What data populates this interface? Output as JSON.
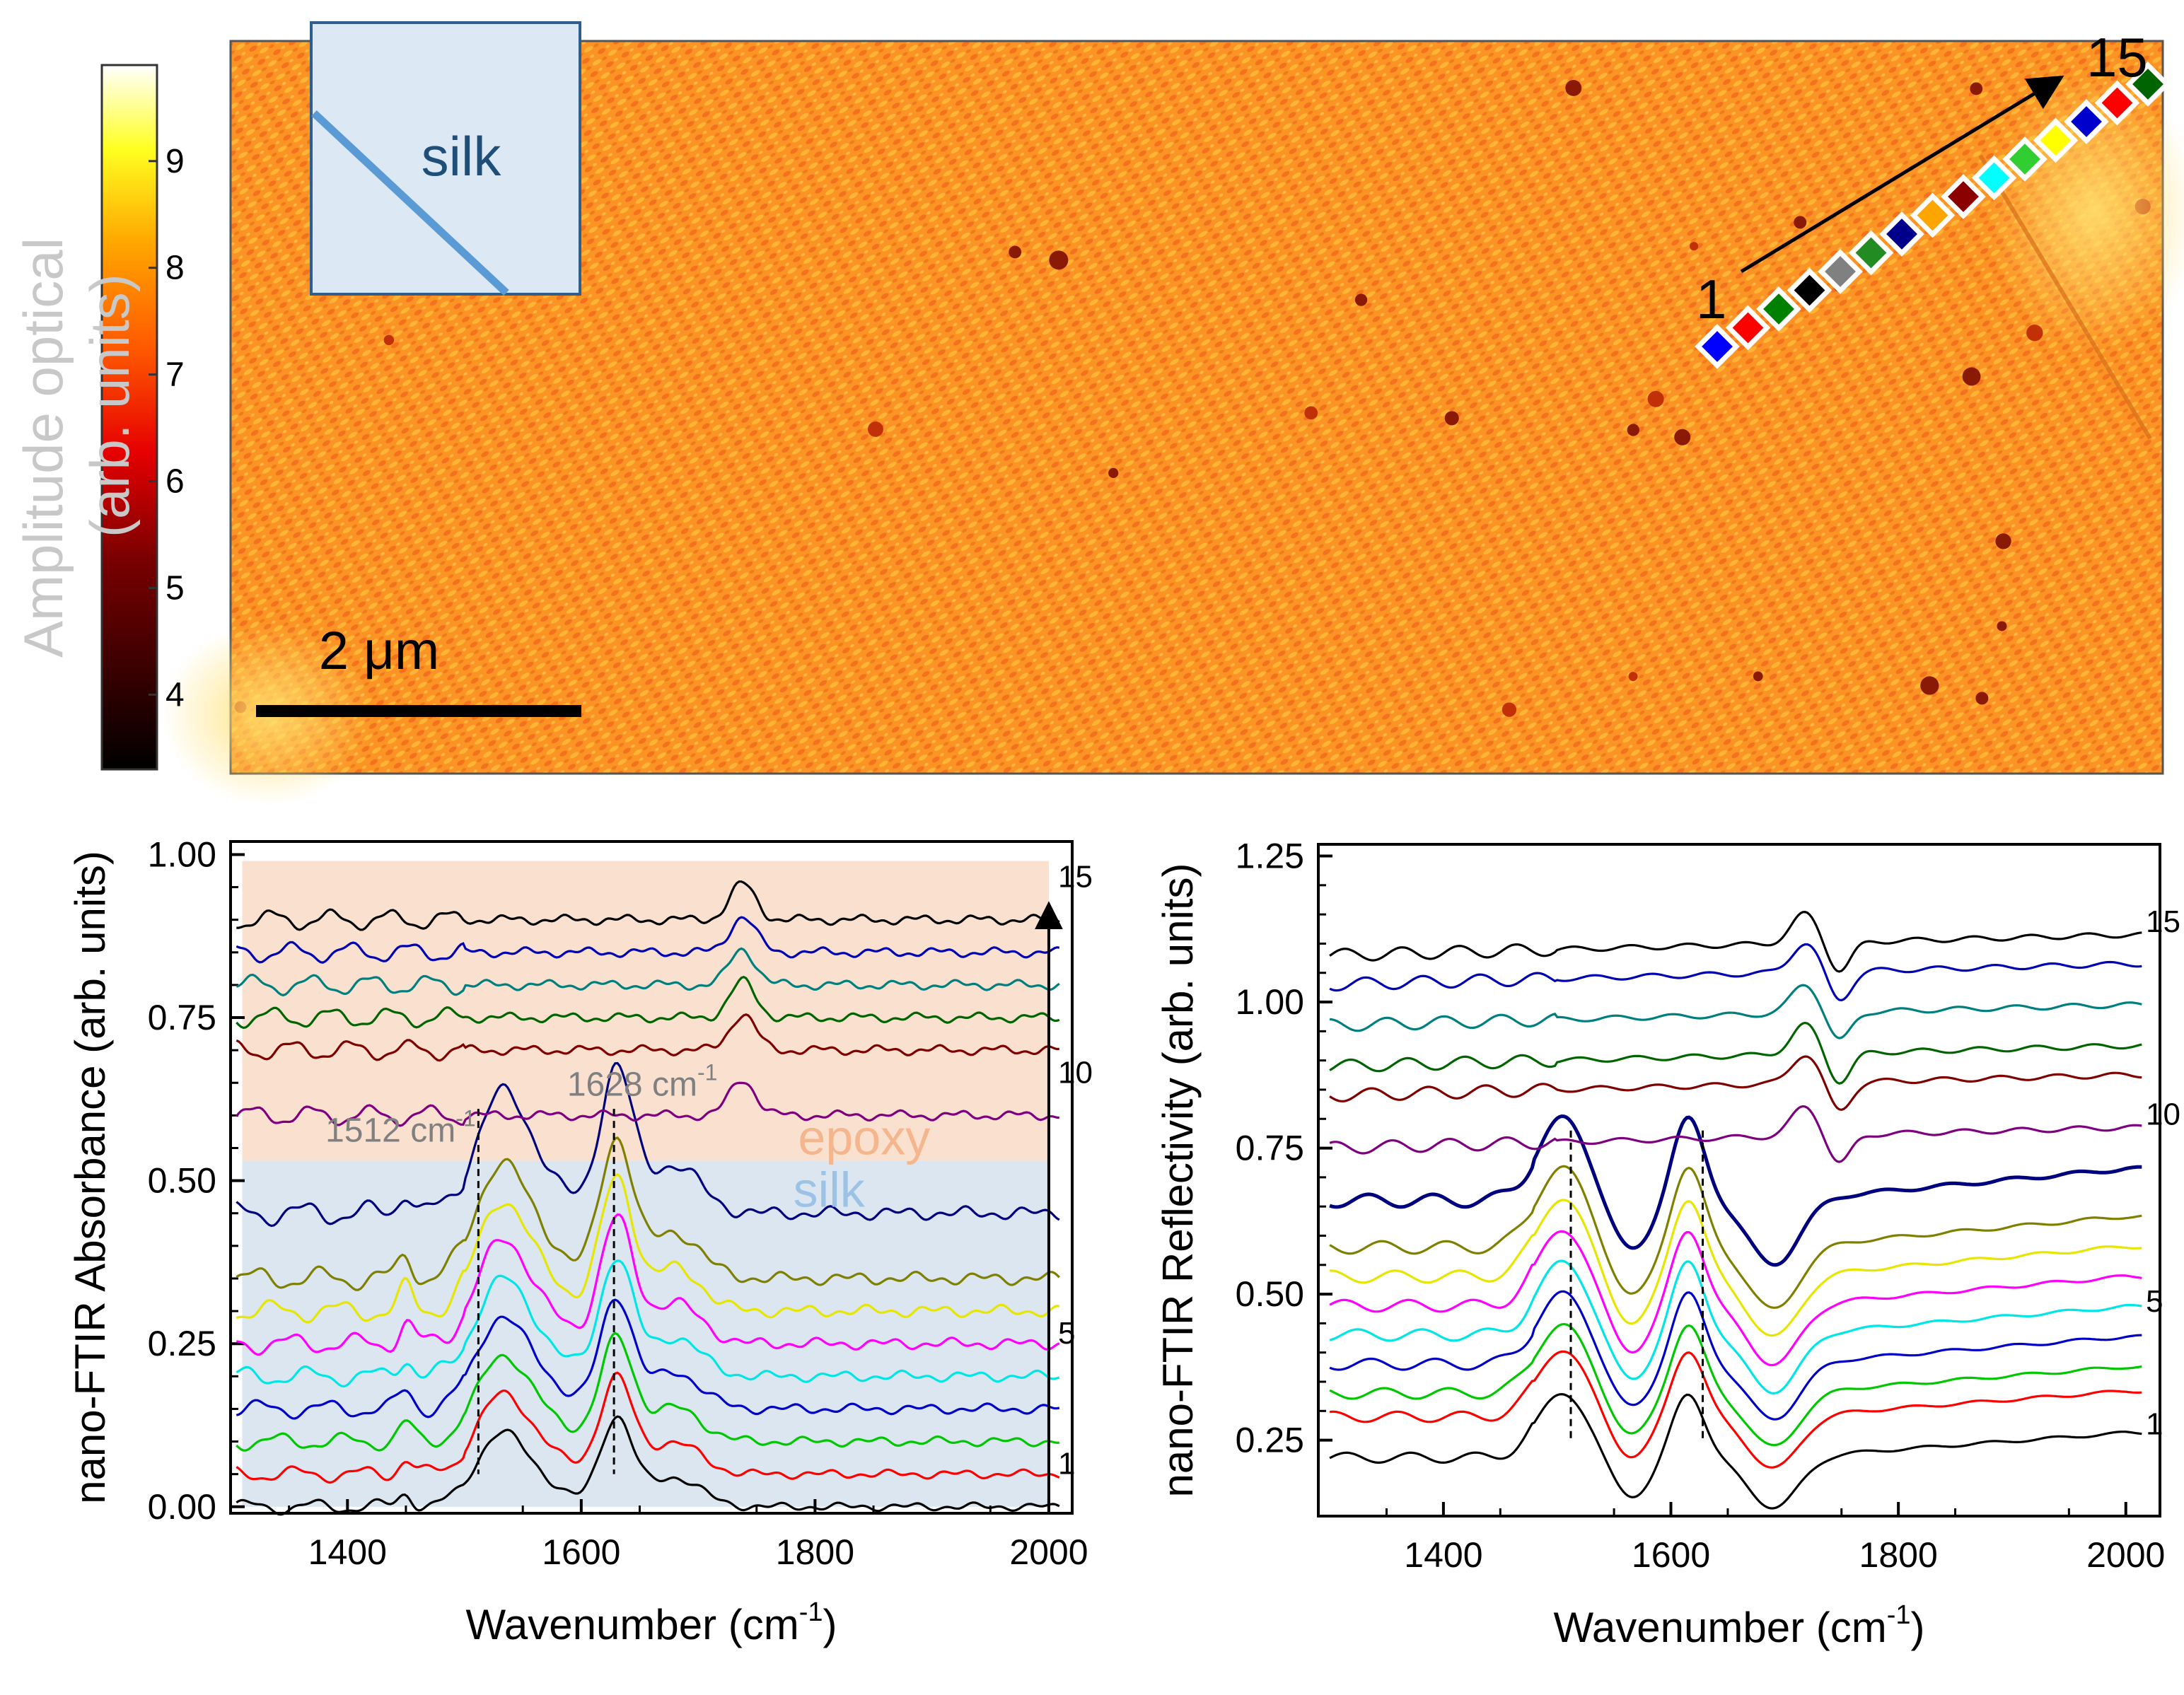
{
  "colors": {
    "epoxy_band": "#f9e0cf",
    "silk_band": "#dbe6f1",
    "epoxy_label": "#f5b68e",
    "silk_label": "#9cc3e6",
    "annotation_gray": "#808080",
    "inset_fill": "#dce9f5",
    "inset_border": "#2e5f8f",
    "inset_line": "#5b9bd5",
    "silk_text": "#1f4e79",
    "spectrum_colors": [
      "#000000",
      "#ff0000",
      "#00c800",
      "#0000c8",
      "#00e6e6",
      "#ff00ff",
      "#e6e600",
      "#7f7f00",
      "#00007f",
      "#7f007f",
      "#7f0000",
      "#006400",
      "#007f7f",
      "#0000b4",
      "#000000"
    ]
  },
  "image_panel": {
    "colorbar": {
      "label_line1": "Amplitude  optical",
      "label_line2": "(arb. units)",
      "ticks": [
        "4",
        "5",
        "6",
        "7",
        "8",
        "9"
      ],
      "range": [
        3.3,
        9.9
      ]
    },
    "scale_bar": {
      "label": "2 μm"
    },
    "inset": {
      "label": "silk"
    },
    "arrow": {
      "start_label": "1",
      "end_label": "15"
    },
    "marker_colors": [
      "#0000ff",
      "#ff0000",
      "#008000",
      "#000000",
      "#808080",
      "#228b22",
      "#00008b",
      "#ffa500",
      "#8b0000",
      "#00ffff",
      "#32cd32",
      "#ffff00",
      "#0000cd",
      "#ff0000",
      "#006400"
    ],
    "hotspot_count": 28
  },
  "chart_data": [
    {
      "type": "line",
      "title": "",
      "xlabel": "Wavenumber (cm",
      "xlabel_sup": "-1",
      "xlabel_end": ")",
      "ylabel": "nano-FTIR Absorbance (arb. units)",
      "xlim": [
        1300,
        2020
      ],
      "ylim": [
        -0.01,
        1.02
      ],
      "x_ticks": [
        1400,
        1600,
        1800,
        2000
      ],
      "x_tick_labels": [
        "1400",
        "1600",
        "1800",
        "2000"
      ],
      "y_ticks": [
        0,
        0.25,
        0.5,
        0.75,
        1.0
      ],
      "y_tick_labels": [
        "0.00",
        "0.25",
        "0.50",
        "0.75",
        "1.00"
      ],
      "series_offsets": [
        0.0,
        0.05,
        0.1,
        0.15,
        0.2,
        0.25,
        0.3,
        0.35,
        0.45,
        0.6,
        0.7,
        0.75,
        0.8,
        0.85,
        0.9
      ],
      "trace_labels": [
        {
          "index": 1,
          "text": "1"
        },
        {
          "index": 5,
          "text": "5"
        },
        {
          "index": 10,
          "text": "10"
        },
        {
          "index": 15,
          "text": "15"
        }
      ],
      "regions": [
        {
          "name": "epoxy",
          "x": [
            1310,
            2000
          ],
          "y": [
            0.53,
            0.99
          ]
        },
        {
          "name": "silk",
          "x": [
            1310,
            2000
          ],
          "y": [
            0.0,
            0.53
          ]
        }
      ],
      "region_labels": {
        "epoxy": "epoxy",
        "silk": "silk"
      },
      "peak_lines": [
        1512,
        1628
      ],
      "annotations": [
        {
          "text": "1512 cm",
          "sup": "-1",
          "x": 1512
        },
        {
          "text": "1628 cm",
          "sup": "-1",
          "x": 1628
        }
      ],
      "order_arrow": {
        "x": 2000,
        "from": 0.0,
        "to": 0.9
      }
    },
    {
      "type": "line",
      "title": "",
      "xlabel": "Wavenumber (cm",
      "xlabel_sup": "-1",
      "xlabel_end": ")",
      "ylabel": "nano-FTIR Reflectivity (arb. units)",
      "xlim": [
        1290,
        2030
      ],
      "ylim": [
        0.12,
        1.27
      ],
      "x_ticks": [
        1400,
        1600,
        1800,
        2000
      ],
      "x_tick_labels": [
        "1400",
        "1600",
        "1800",
        "2000"
      ],
      "y_ticks": [
        0.25,
        0.5,
        0.75,
        1.0,
        1.25
      ],
      "y_tick_labels": [
        "0.25",
        "0.50",
        "0.75",
        "1.00",
        "1.25"
      ],
      "series_offsets": [
        0.22,
        0.29,
        0.33,
        0.38,
        0.43,
        0.48,
        0.53,
        0.58,
        0.66,
        0.75,
        0.84,
        0.89,
        0.96,
        1.03,
        1.08
      ],
      "trace_labels": [
        {
          "index": 1,
          "text": "1"
        },
        {
          "index": 5,
          "text": "5"
        },
        {
          "index": 10,
          "text": "10"
        },
        {
          "index": 15,
          "text": "15"
        }
      ],
      "peak_lines": [
        1512,
        1628
      ]
    }
  ]
}
